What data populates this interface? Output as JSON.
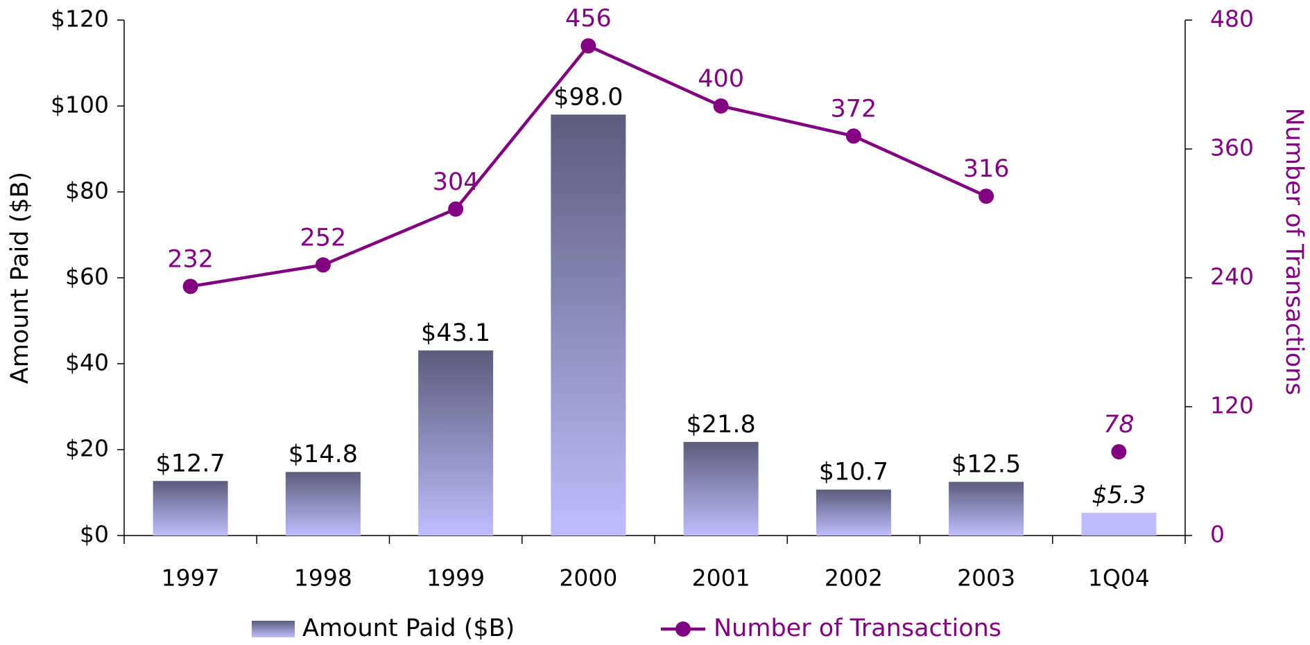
{
  "chart_data": {
    "type": "bar_line",
    "categories": [
      "1997",
      "1998",
      "1999",
      "2000",
      "2001",
      "2002",
      "2003",
      "1Q04"
    ],
    "series": [
      {
        "name": "Amount Paid ($B)",
        "type": "bar",
        "axis": "y",
        "color": "#5c5c7c",
        "gradient_color": "#bebeff",
        "values": [
          12.7,
          14.8,
          43.1,
          98.0,
          21.8,
          10.7,
          12.5,
          5.3
        ],
        "value_labels": [
          "$12.7",
          "$14.8",
          "$43.1",
          "$98.0",
          "$21.8",
          "$10.7",
          "$12.5",
          "$5.3"
        ]
      },
      {
        "name": "Number of Transactions",
        "type": "line",
        "axis": "y2",
        "color": "#800080",
        "values": [
          232,
          252,
          304,
          456,
          400,
          372,
          316,
          78
        ]
      }
    ],
    "italic_last": true,
    "y_label": "Amount Paid ($B)",
    "y2_label": "Number of Transactions",
    "ylim": [
      0,
      120
    ],
    "yticks": [
      {
        "value": 0,
        "label": "$0"
      },
      {
        "value": 20,
        "label": "$20"
      },
      {
        "value": 40,
        "label": "$40"
      },
      {
        "value": 60,
        "label": "$60"
      },
      {
        "value": 80,
        "label": "$80"
      },
      {
        "value": 100,
        "label": "$100"
      },
      {
        "value": 120,
        "label": "$120"
      }
    ],
    "y2lim": [
      0,
      480
    ],
    "y2ticks": [
      0,
      120,
      240,
      360,
      480
    ],
    "legend": "bottom"
  }
}
